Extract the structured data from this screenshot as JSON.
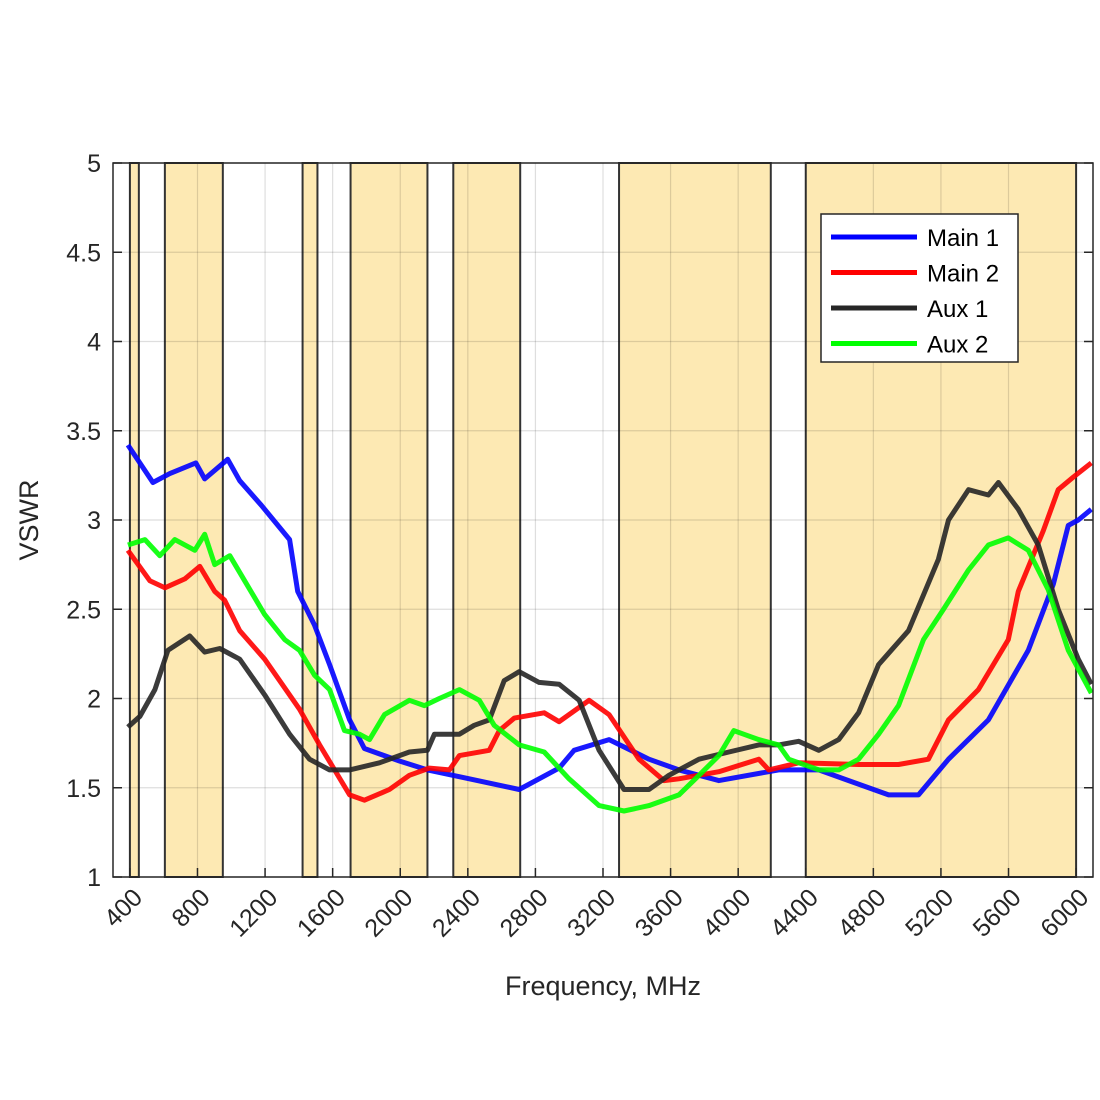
{
  "chart_data": {
    "type": "line",
    "title": "",
    "xlabel": "Frequency, MHz",
    "ylabel": "VSWR",
    "xlim": [
      300,
      6100
    ],
    "ylim": [
      1,
      5
    ],
    "xticks": [
      400,
      800,
      1200,
      1600,
      2000,
      2400,
      2800,
      3200,
      3600,
      4000,
      4400,
      4800,
      5200,
      5600,
      6000
    ],
    "yticks": [
      1,
      1.5,
      2,
      2.5,
      3,
      3.5,
      4,
      4.5,
      5
    ],
    "ytick_labels": [
      "1",
      "1.5",
      "2",
      "2.5",
      "3",
      "3.5",
      "4",
      "4.5",
      "5"
    ],
    "grid": true,
    "legend_position": "top-right",
    "band_color": "#fde9b3",
    "shaded_bands": [
      [
        400,
        453
      ],
      [
        607,
        950
      ],
      [
        1422,
        1510
      ],
      [
        1706,
        2161
      ],
      [
        2314,
        2710
      ],
      [
        3295,
        4193
      ],
      [
        4400,
        6000
      ]
    ],
    "series": [
      {
        "name": "Main 1",
        "color": "#0000ff",
        "points": [
          [
            388,
            3.42
          ],
          [
            536,
            3.21
          ],
          [
            636,
            3.26
          ],
          [
            790,
            3.32
          ],
          [
            843,
            3.23
          ],
          [
            979,
            3.34
          ],
          [
            1050,
            3.22
          ],
          [
            1180,
            3.08
          ],
          [
            1345,
            2.89
          ],
          [
            1393,
            2.6
          ],
          [
            1493,
            2.41
          ],
          [
            1582,
            2.19
          ],
          [
            1700,
            1.88
          ],
          [
            1788,
            1.72
          ],
          [
            1995,
            1.65
          ],
          [
            2161,
            1.6
          ],
          [
            2409,
            1.55
          ],
          [
            2704,
            1.49
          ],
          [
            2940,
            1.61
          ],
          [
            3029,
            1.71
          ],
          [
            3236,
            1.77
          ],
          [
            3472,
            1.66
          ],
          [
            3649,
            1.6
          ],
          [
            3886,
            1.54
          ],
          [
            4240,
            1.6
          ],
          [
            4477,
            1.6
          ],
          [
            4654,
            1.54
          ],
          [
            4890,
            1.46
          ],
          [
            5067,
            1.46
          ],
          [
            5245,
            1.66
          ],
          [
            5481,
            1.88
          ],
          [
            5717,
            2.27
          ],
          [
            5865,
            2.64
          ],
          [
            5954,
            2.97
          ],
          [
            6013,
            3.0
          ],
          [
            6090,
            3.06
          ]
        ]
      },
      {
        "name": "Main 2",
        "color": "#ff0000",
        "points": [
          [
            388,
            2.83
          ],
          [
            518,
            2.66
          ],
          [
            607,
            2.62
          ],
          [
            725,
            2.67
          ],
          [
            814,
            2.74
          ],
          [
            902,
            2.6
          ],
          [
            961,
            2.55
          ],
          [
            1050,
            2.38
          ],
          [
            1198,
            2.22
          ],
          [
            1404,
            1.94
          ],
          [
            1523,
            1.74
          ],
          [
            1700,
            1.46
          ],
          [
            1788,
            1.43
          ],
          [
            1936,
            1.49
          ],
          [
            2054,
            1.57
          ],
          [
            2172,
            1.61
          ],
          [
            2291,
            1.6
          ],
          [
            2350,
            1.68
          ],
          [
            2527,
            1.71
          ],
          [
            2586,
            1.82
          ],
          [
            2675,
            1.89
          ],
          [
            2852,
            1.92
          ],
          [
            2940,
            1.87
          ],
          [
            3118,
            1.99
          ],
          [
            3236,
            1.91
          ],
          [
            3413,
            1.66
          ],
          [
            3561,
            1.54
          ],
          [
            3649,
            1.55
          ],
          [
            3886,
            1.59
          ],
          [
            4122,
            1.66
          ],
          [
            4181,
            1.6
          ],
          [
            4358,
            1.64
          ],
          [
            4713,
            1.63
          ],
          [
            4949,
            1.63
          ],
          [
            5126,
            1.66
          ],
          [
            5245,
            1.88
          ],
          [
            5422,
            2.05
          ],
          [
            5599,
            2.33
          ],
          [
            5658,
            2.6
          ],
          [
            5806,
            2.94
          ],
          [
            5894,
            3.17
          ],
          [
            5983,
            3.24
          ],
          [
            6090,
            3.32
          ]
        ]
      },
      {
        "name": "Aux 1",
        "color": "#262626",
        "points": [
          [
            388,
            1.84
          ],
          [
            459,
            1.9
          ],
          [
            548,
            2.05
          ],
          [
            625,
            2.27
          ],
          [
            754,
            2.35
          ],
          [
            843,
            2.26
          ],
          [
            932,
            2.28
          ],
          [
            1050,
            2.22
          ],
          [
            1198,
            2.02
          ],
          [
            1345,
            1.8
          ],
          [
            1463,
            1.66
          ],
          [
            1582,
            1.6
          ],
          [
            1700,
            1.6
          ],
          [
            1877,
            1.64
          ],
          [
            2054,
            1.7
          ],
          [
            2161,
            1.71
          ],
          [
            2202,
            1.8
          ],
          [
            2350,
            1.8
          ],
          [
            2438,
            1.85
          ],
          [
            2527,
            1.88
          ],
          [
            2615,
            2.1
          ],
          [
            2704,
            2.15
          ],
          [
            2822,
            2.09
          ],
          [
            2940,
            2.08
          ],
          [
            3059,
            1.99
          ],
          [
            3177,
            1.71
          ],
          [
            3324,
            1.49
          ],
          [
            3472,
            1.49
          ],
          [
            3590,
            1.57
          ],
          [
            3768,
            1.66
          ],
          [
            3945,
            1.7
          ],
          [
            4122,
            1.74
          ],
          [
            4240,
            1.74
          ],
          [
            4358,
            1.76
          ],
          [
            4477,
            1.71
          ],
          [
            4595,
            1.77
          ],
          [
            4713,
            1.92
          ],
          [
            4831,
            2.19
          ],
          [
            5008,
            2.38
          ],
          [
            5185,
            2.78
          ],
          [
            5245,
            3.0
          ],
          [
            5363,
            3.17
          ],
          [
            5481,
            3.14
          ],
          [
            5540,
            3.21
          ],
          [
            5658,
            3.06
          ],
          [
            5776,
            2.86
          ],
          [
            5894,
            2.5
          ],
          [
            6013,
            2.22
          ],
          [
            6090,
            2.08
          ]
        ]
      },
      {
        "name": "Aux 2",
        "color": "#00ff00",
        "points": [
          [
            388,
            2.86
          ],
          [
            489,
            2.89
          ],
          [
            577,
            2.8
          ],
          [
            666,
            2.89
          ],
          [
            784,
            2.83
          ],
          [
            843,
            2.92
          ],
          [
            902,
            2.75
          ],
          [
            991,
            2.8
          ],
          [
            1079,
            2.66
          ],
          [
            1198,
            2.47
          ],
          [
            1316,
            2.33
          ],
          [
            1404,
            2.27
          ],
          [
            1493,
            2.13
          ],
          [
            1582,
            2.05
          ],
          [
            1670,
            1.82
          ],
          [
            1759,
            1.8
          ],
          [
            1818,
            1.77
          ],
          [
            1907,
            1.91
          ],
          [
            2054,
            1.99
          ],
          [
            2143,
            1.96
          ],
          [
            2231,
            2.0
          ],
          [
            2350,
            2.05
          ],
          [
            2468,
            1.99
          ],
          [
            2556,
            1.85
          ],
          [
            2704,
            1.74
          ],
          [
            2852,
            1.7
          ],
          [
            2999,
            1.55
          ],
          [
            3177,
            1.4
          ],
          [
            3324,
            1.37
          ],
          [
            3472,
            1.4
          ],
          [
            3649,
            1.46
          ],
          [
            3768,
            1.57
          ],
          [
            3886,
            1.68
          ],
          [
            3974,
            1.82
          ],
          [
            4033,
            1.8
          ],
          [
            4122,
            1.77
          ],
          [
            4240,
            1.74
          ],
          [
            4299,
            1.66
          ],
          [
            4477,
            1.6
          ],
          [
            4595,
            1.6
          ],
          [
            4713,
            1.66
          ],
          [
            4831,
            1.8
          ],
          [
            4949,
            1.96
          ],
          [
            5097,
            2.33
          ],
          [
            5215,
            2.5
          ],
          [
            5363,
            2.72
          ],
          [
            5481,
            2.86
          ],
          [
            5599,
            2.9
          ],
          [
            5717,
            2.83
          ],
          [
            5835,
            2.61
          ],
          [
            5954,
            2.27
          ],
          [
            6090,
            2.03
          ]
        ]
      }
    ]
  }
}
